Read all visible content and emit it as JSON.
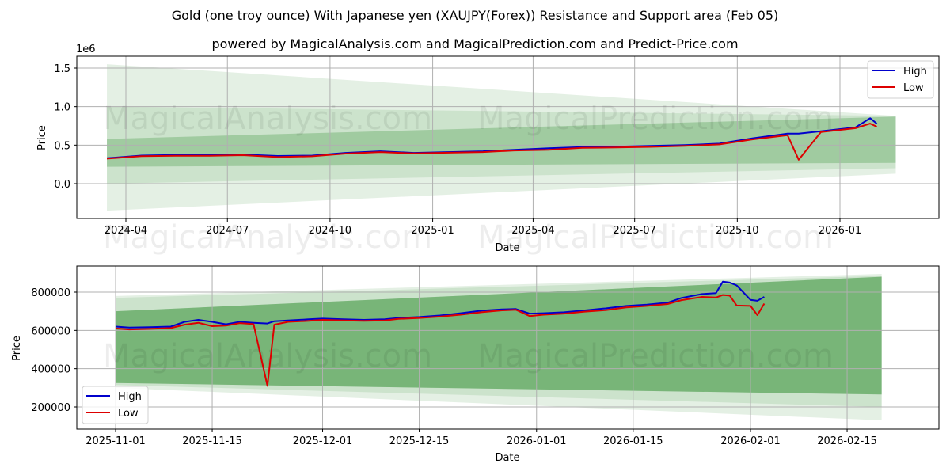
{
  "titles": {
    "main": "Gold (one troy ounce) With Japanese yen (XAUJPY(Forex)) Resistance and Support area (Feb 05)",
    "subtitle": "powered by MagicalAnalysis.com and MagicalPrediction.com and Predict-Price.com"
  },
  "watermarks": [
    "MagicalAnalysis.com",
    "MagicalPrediction.com"
  ],
  "colors": {
    "high": "#0000cc",
    "low": "#dd0000",
    "band": "#2e8b2e",
    "grid": "#b0b0b0"
  },
  "chart_data": [
    {
      "type": "line",
      "title": "Gold (one troy ounce) With Japanese yen (XAUJPY(Forex)) Resistance and Support area (Feb 05)",
      "subtitle": "powered by MagicalAnalysis.com and MagicalPrediction.com and Predict-Price.com",
      "xlabel": "Date",
      "ylabel": "Price",
      "y_scale_label": "1e6",
      "x_ticks": [
        "2024-04",
        "2024-07",
        "2024-10",
        "2025-01",
        "2025-04",
        "2025-07",
        "2025-10",
        "2026-01"
      ],
      "y_ticks": [
        "0.0",
        "0.5",
        "1.0",
        "1.5"
      ],
      "ylim": [
        -450000,
        1650000
      ],
      "grid": true,
      "legend": {
        "position": "upper right",
        "entries": [
          "High",
          "Low"
        ]
      },
      "x": [
        "2024-03-15",
        "2024-04-15",
        "2024-05-15",
        "2024-06-15",
        "2024-07-15",
        "2024-08-15",
        "2024-09-15",
        "2024-10-15",
        "2024-11-15",
        "2024-12-15",
        "2025-01-15",
        "2025-02-15",
        "2025-03-15",
        "2025-04-15",
        "2025-05-15",
        "2025-06-15",
        "2025-07-15",
        "2025-08-15",
        "2025-09-15",
        "2025-10-15",
        "2025-11-15",
        "2025-11-25",
        "2025-12-15",
        "2026-01-15",
        "2026-01-28",
        "2026-02-03"
      ],
      "series": [
        {
          "name": "High",
          "values": [
            330000,
            365000,
            372000,
            370000,
            378000,
            360000,
            365000,
            400000,
            420000,
            400000,
            410000,
            420000,
            440000,
            460000,
            475000,
            480000,
            490000,
            500000,
            520000,
            590000,
            650000,
            650000,
            680000,
            730000,
            850000,
            780000
          ]
        },
        {
          "name": "Low",
          "values": [
            325000,
            358000,
            362000,
            362000,
            370000,
            345000,
            355000,
            390000,
            410000,
            392000,
            402000,
            410000,
            430000,
            440000,
            465000,
            470000,
            478000,
            490000,
            510000,
            575000,
            630000,
            310000,
            670000,
            720000,
            780000,
            740000
          ]
        }
      ],
      "bands": [
        {
          "name": "outer",
          "start": {
            "x": "2024-03-15",
            "upper": 1550000,
            "lower": -350000
          },
          "end": {
            "x": "2026-02-20",
            "upper": 880000,
            "lower": 130000
          }
        },
        {
          "name": "middle",
          "start": {
            "x": "2024-03-15",
            "upper": 1000000,
            "lower": 0
          },
          "end": {
            "x": "2026-02-20",
            "upper": 880000,
            "lower": 200000
          }
        },
        {
          "name": "inner",
          "start": {
            "x": "2024-03-15",
            "upper": 580000,
            "lower": 220000
          },
          "end": {
            "x": "2026-02-20",
            "upper": 870000,
            "lower": 270000
          }
        }
      ]
    },
    {
      "type": "line",
      "xlabel": "Date",
      "ylabel": "Price",
      "x_ticks": [
        "2025-11-01",
        "2025-11-15",
        "2025-12-01",
        "2025-12-15",
        "2026-01-01",
        "2026-01-15",
        "2026-02-01",
        "2026-02-15"
      ],
      "y_ticks": [
        "200000",
        "400000",
        "600000",
        "800000"
      ],
      "ylim": [
        90000,
        940000
      ],
      "grid": true,
      "legend": {
        "position": "lower left",
        "entries": [
          "High",
          "Low"
        ]
      },
      "x": [
        "2025-11-01",
        "2025-11-03",
        "2025-11-06",
        "2025-11-09",
        "2025-11-11",
        "2025-11-13",
        "2025-11-15",
        "2025-11-17",
        "2025-11-19",
        "2025-11-21",
        "2025-11-23",
        "2025-11-24",
        "2025-11-26",
        "2025-11-29",
        "2025-12-01",
        "2025-12-04",
        "2025-12-07",
        "2025-12-10",
        "2025-12-12",
        "2025-12-15",
        "2025-12-18",
        "2025-12-21",
        "2025-12-24",
        "2025-12-27",
        "2025-12-29",
        "2025-12-31",
        "2026-01-02",
        "2026-01-05",
        "2026-01-08",
        "2026-01-11",
        "2026-01-14",
        "2026-01-17",
        "2026-01-20",
        "2026-01-22",
        "2026-01-25",
        "2026-01-27",
        "2026-01-28",
        "2026-01-29",
        "2026-01-30",
        "2026-02-01",
        "2026-02-02",
        "2026-02-03"
      ],
      "series": [
        {
          "name": "High",
          "values": [
            620000,
            615000,
            617000,
            620000,
            645000,
            655000,
            645000,
            632000,
            645000,
            640000,
            636000,
            648000,
            652000,
            658000,
            662000,
            658000,
            655000,
            658000,
            665000,
            670000,
            678000,
            690000,
            703000,
            710000,
            712000,
            688000,
            690000,
            695000,
            705000,
            715000,
            728000,
            735000,
            745000,
            770000,
            790000,
            795000,
            855000,
            850000,
            835000,
            760000,
            755000,
            775000
          ]
        },
        {
          "name": "Low",
          "values": [
            610000,
            605000,
            608000,
            612000,
            630000,
            640000,
            622000,
            625000,
            638000,
            633000,
            310000,
            630000,
            645000,
            650000,
            655000,
            652000,
            650000,
            652000,
            660000,
            665000,
            672000,
            682000,
            695000,
            705000,
            708000,
            675000,
            682000,
            688000,
            698000,
            706000,
            720000,
            728000,
            738000,
            758000,
            775000,
            772000,
            785000,
            782000,
            730000,
            728000,
            680000,
            740000
          ]
        }
      ],
      "bands": [
        {
          "name": "outer",
          "start": {
            "x": "2025-11-01",
            "upper": 780000,
            "lower": 300000
          },
          "end": {
            "x": "2026-02-20",
            "upper": 895000,
            "lower": 130000
          }
        },
        {
          "name": "middle",
          "start": {
            "x": "2025-11-01",
            "upper": 770000,
            "lower": 315000
          },
          "end": {
            "x": "2026-02-20",
            "upper": 885000,
            "lower": 200000
          }
        },
        {
          "name": "inner",
          "start": {
            "x": "2025-11-01",
            "upper": 700000,
            "lower": 325000
          },
          "end": {
            "x": "2026-02-20",
            "upper": 880000,
            "lower": 265000
          }
        }
      ]
    }
  ]
}
